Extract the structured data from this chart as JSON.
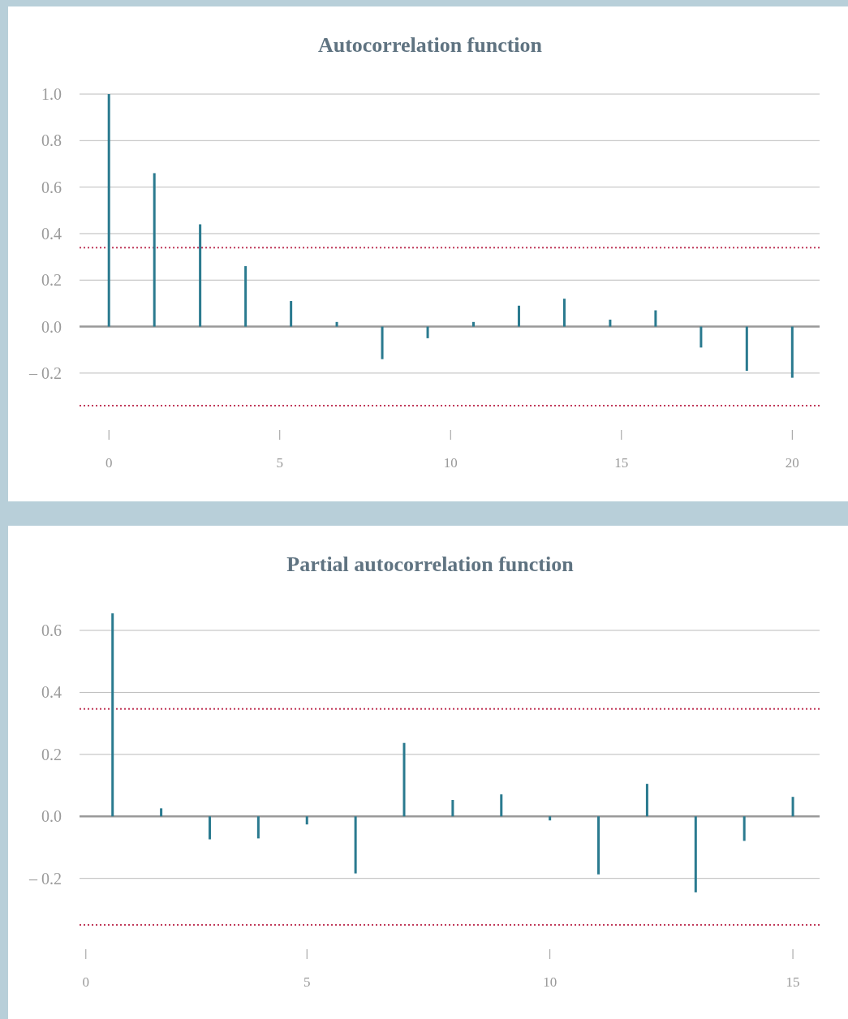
{
  "chart_data": [
    {
      "type": "bar",
      "title": "Autocorrelation function",
      "x": [
        0,
        1.33,
        2.67,
        4,
        5.33,
        6.67,
        8,
        9.33,
        10.67,
        12,
        13.33,
        14.67,
        16,
        17.33,
        18.67,
        20
      ],
      "values": [
        1.0,
        0.66,
        0.44,
        0.26,
        0.11,
        0.02,
        -0.14,
        -0.05,
        0.02,
        0.09,
        0.12,
        0.03,
        0.07,
        -0.09,
        -0.19,
        -0.22
      ],
      "color": "#2a7a8f",
      "xlim": [
        -0.86,
        20.8
      ],
      "xticks": [
        0,
        5,
        10,
        15,
        20
      ],
      "ylim": [
        -0.34,
        1.0
      ],
      "yticks": [
        {
          "value": -0.2,
          "label": "– 0.2"
        },
        {
          "value": 0,
          "label": "0.0"
        },
        0.2,
        0.4,
        0.6,
        0.8,
        {
          "value": 1,
          "label": "1.0"
        }
      ],
      "grid": "y",
      "ref_lines": [
        {
          "axis": "y",
          "value": 0.34,
          "color": "#c0395a",
          "line_style": "dotted"
        },
        {
          "axis": "y",
          "value": -0.34,
          "color": "#c0395a",
          "line_style": "dotted"
        }
      ]
    },
    {
      "type": "bar",
      "title": "Partial autocorrelation function",
      "x": [
        1,
        2,
        3,
        4,
        5,
        6,
        7,
        8,
        9,
        10,
        11,
        12,
        13,
        14,
        15
      ],
      "values": [
        0.655,
        0.026,
        -0.074,
        -0.071,
        -0.026,
        -0.184,
        0.237,
        0.053,
        0.071,
        -0.013,
        -0.187,
        0.105,
        -0.245,
        -0.079,
        0.063
      ],
      "color": "#2a7a8f",
      "xlim": [
        0.32,
        15.55
      ],
      "xticks": [
        {
          "value": 0.45,
          "label": "0"
        },
        5,
        10,
        15
      ],
      "ylim": [
        -0.35,
        0.655
      ],
      "yticks": [
        {
          "value": -0.2,
          "label": "– 0.2"
        },
        {
          "value": 0,
          "label": "0.0"
        },
        0.2,
        0.4,
        0.6
      ],
      "grid": "y",
      "ref_lines": [
        {
          "axis": "y",
          "value": 0.347,
          "color": "#c0395a",
          "line_style": "dotted"
        },
        {
          "axis": "y",
          "value": -0.35,
          "color": "#c0395a",
          "line_style": "dotted"
        }
      ]
    }
  ]
}
